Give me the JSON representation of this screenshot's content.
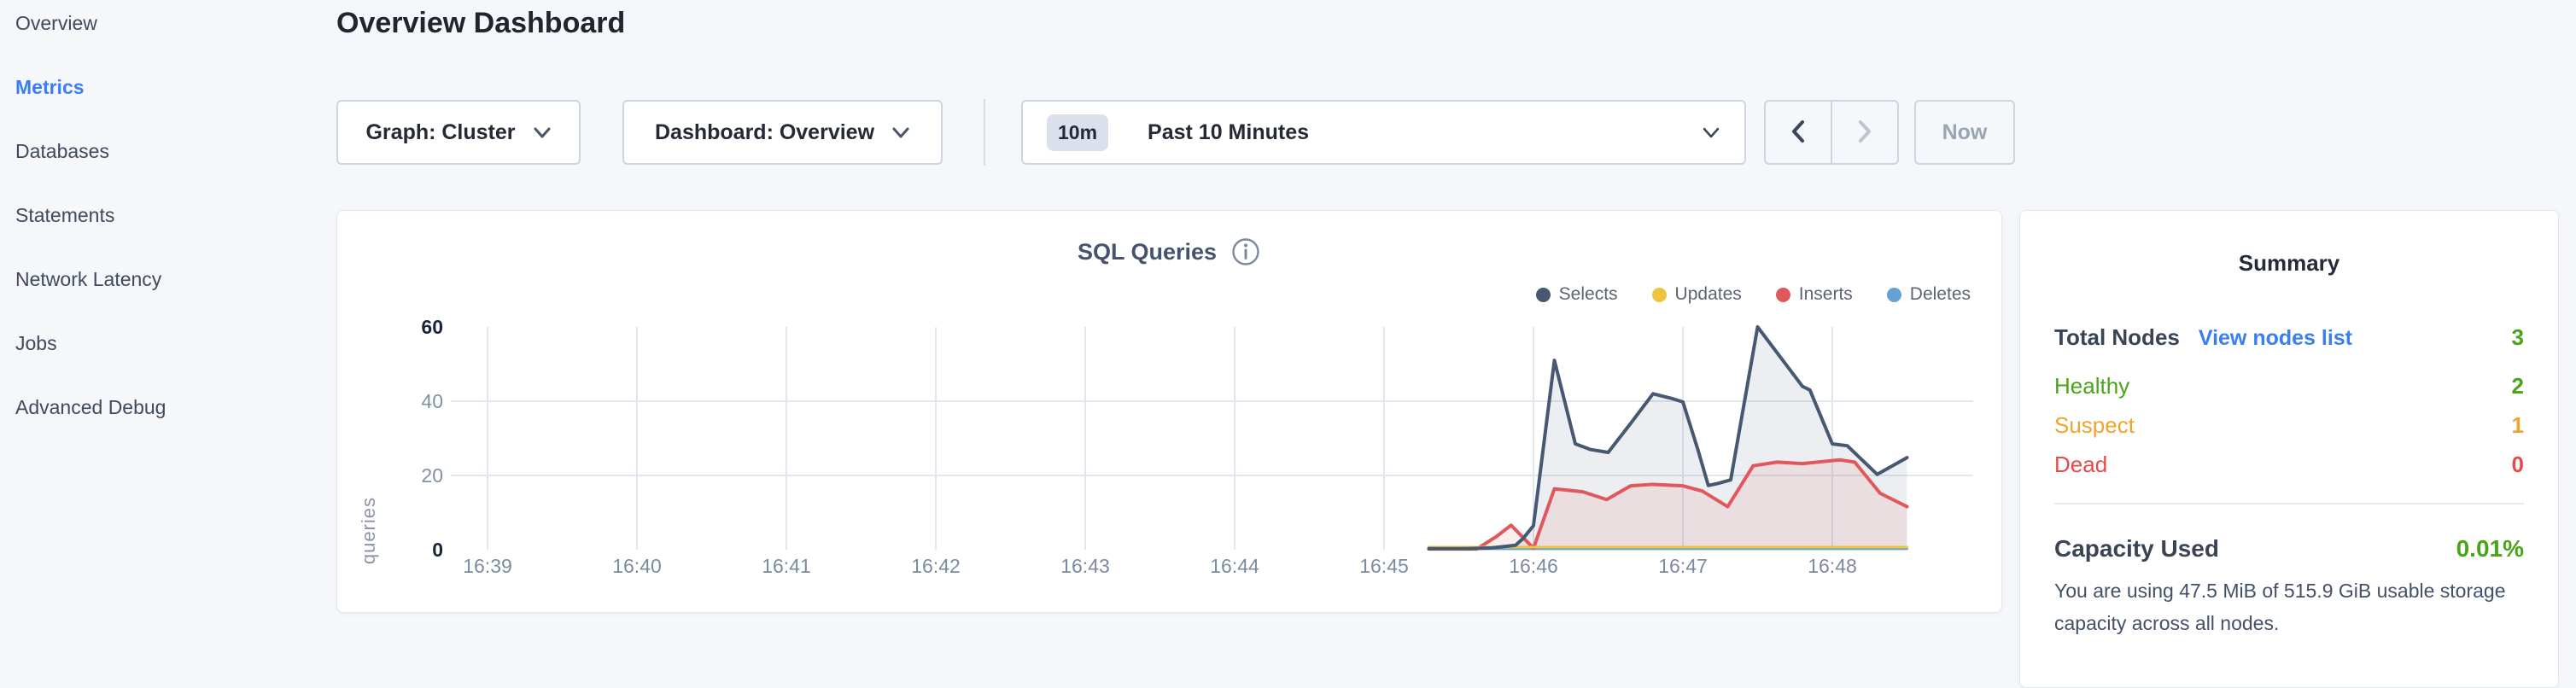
{
  "sidebar": {
    "items": [
      {
        "label": "Overview",
        "active": false
      },
      {
        "label": "Metrics",
        "active": true
      },
      {
        "label": "Databases",
        "active": false
      },
      {
        "label": "Statements",
        "active": false
      },
      {
        "label": "Network Latency",
        "active": false
      },
      {
        "label": "Jobs",
        "active": false
      },
      {
        "label": "Advanced Debug",
        "active": false
      }
    ]
  },
  "header": {
    "title": "Overview Dashboard"
  },
  "toolbar": {
    "graph_dropdown": {
      "label": "Graph: Cluster"
    },
    "dashboard_dropdown": {
      "label": "Dashboard: Overview"
    },
    "time_range": {
      "badge": "10m",
      "label": "Past 10 Minutes"
    },
    "now_button": "Now"
  },
  "accent_colors": {
    "active_nav": "#3a7ef2",
    "link": "#3a7ef2"
  },
  "chart_data": {
    "type": "area",
    "title": "SQL Queries",
    "xlabel": "",
    "ylabel": "queries",
    "ylim": [
      0,
      60
    ],
    "grid": true,
    "legend_position": "top-right",
    "x_ticks": [
      "16:39",
      "16:40",
      "16:41",
      "16:42",
      "16:43",
      "16:44",
      "16:45",
      "16:46",
      "16:47",
      "16:48"
    ],
    "y_ticks": [
      0,
      20,
      40,
      60
    ],
    "x_unit_minutes_from_first_tick": true,
    "series": [
      {
        "name": "Selects",
        "color": "#475872",
        "fill": "rgba(71,88,114,0.10)",
        "points": [
          [
            6.3,
            0.3
          ],
          [
            6.55,
            0.3
          ],
          [
            6.72,
            0.5
          ],
          [
            6.88,
            1.2
          ],
          [
            6.93,
            3.0
          ],
          [
            7.0,
            6.5
          ],
          [
            7.14,
            51
          ],
          [
            7.28,
            28.5
          ],
          [
            7.38,
            27
          ],
          [
            7.5,
            26.2
          ],
          [
            7.65,
            34
          ],
          [
            7.8,
            42
          ],
          [
            7.92,
            40.8
          ],
          [
            8.0,
            39.8
          ],
          [
            8.1,
            27
          ],
          [
            8.17,
            17.3
          ],
          [
            8.23,
            17.8
          ],
          [
            8.32,
            18.8
          ],
          [
            8.5,
            60
          ],
          [
            8.65,
            52
          ],
          [
            8.8,
            44
          ],
          [
            8.85,
            43
          ],
          [
            9.0,
            28.5
          ],
          [
            9.1,
            28
          ],
          [
            9.3,
            20.3
          ],
          [
            9.5,
            24.8
          ]
        ]
      },
      {
        "name": "Updates",
        "color": "#eec43e",
        "fill": null,
        "points": [
          [
            6.3,
            0.7
          ],
          [
            9.5,
            0.7
          ]
        ]
      },
      {
        "name": "Inserts",
        "color": "#e0585c",
        "fill": "rgba(224,88,92,0.10)",
        "points": [
          [
            6.3,
            0.2
          ],
          [
            6.62,
            0.2
          ],
          [
            6.75,
            3.5
          ],
          [
            6.85,
            6.6
          ],
          [
            7.0,
            0.4
          ],
          [
            7.14,
            16.4
          ],
          [
            7.33,
            15.6
          ],
          [
            7.49,
            13.5
          ],
          [
            7.65,
            17.2
          ],
          [
            7.8,
            17.6
          ],
          [
            8.0,
            17.2
          ],
          [
            8.13,
            15.8
          ],
          [
            8.3,
            11.6
          ],
          [
            8.47,
            22.6
          ],
          [
            8.63,
            23.6
          ],
          [
            8.8,
            23.2
          ],
          [
            8.95,
            23.8
          ],
          [
            9.05,
            24.2
          ],
          [
            9.15,
            23.6
          ],
          [
            9.32,
            15.2
          ],
          [
            9.5,
            11.6
          ]
        ]
      },
      {
        "name": "Deletes",
        "color": "#64a2d6",
        "fill": null,
        "points": [
          [
            6.3,
            0.25
          ],
          [
            9.5,
            0.25
          ]
        ]
      }
    ]
  },
  "summary": {
    "title": "Summary",
    "rows": [
      {
        "label": "Total Nodes",
        "link": "View nodes list",
        "value": "3",
        "label_color": "#394455",
        "value_color": "#49a417"
      },
      {
        "label": "Healthy",
        "value": "2",
        "label_color": "#49a417",
        "value_color": "#49a417"
      },
      {
        "label": "Suspect",
        "value": "1",
        "label_color": "#f1a32f",
        "value_color": "#f1a32f"
      },
      {
        "label": "Dead",
        "value": "0",
        "label_color": "#e84949",
        "value_color": "#e84949"
      }
    ],
    "capacity": {
      "label": "Capacity Used",
      "value": "0.01%",
      "value_color": "#49a417",
      "description": "You are using 47.5 MiB of 515.9 GiB usable storage capacity across all nodes."
    }
  }
}
